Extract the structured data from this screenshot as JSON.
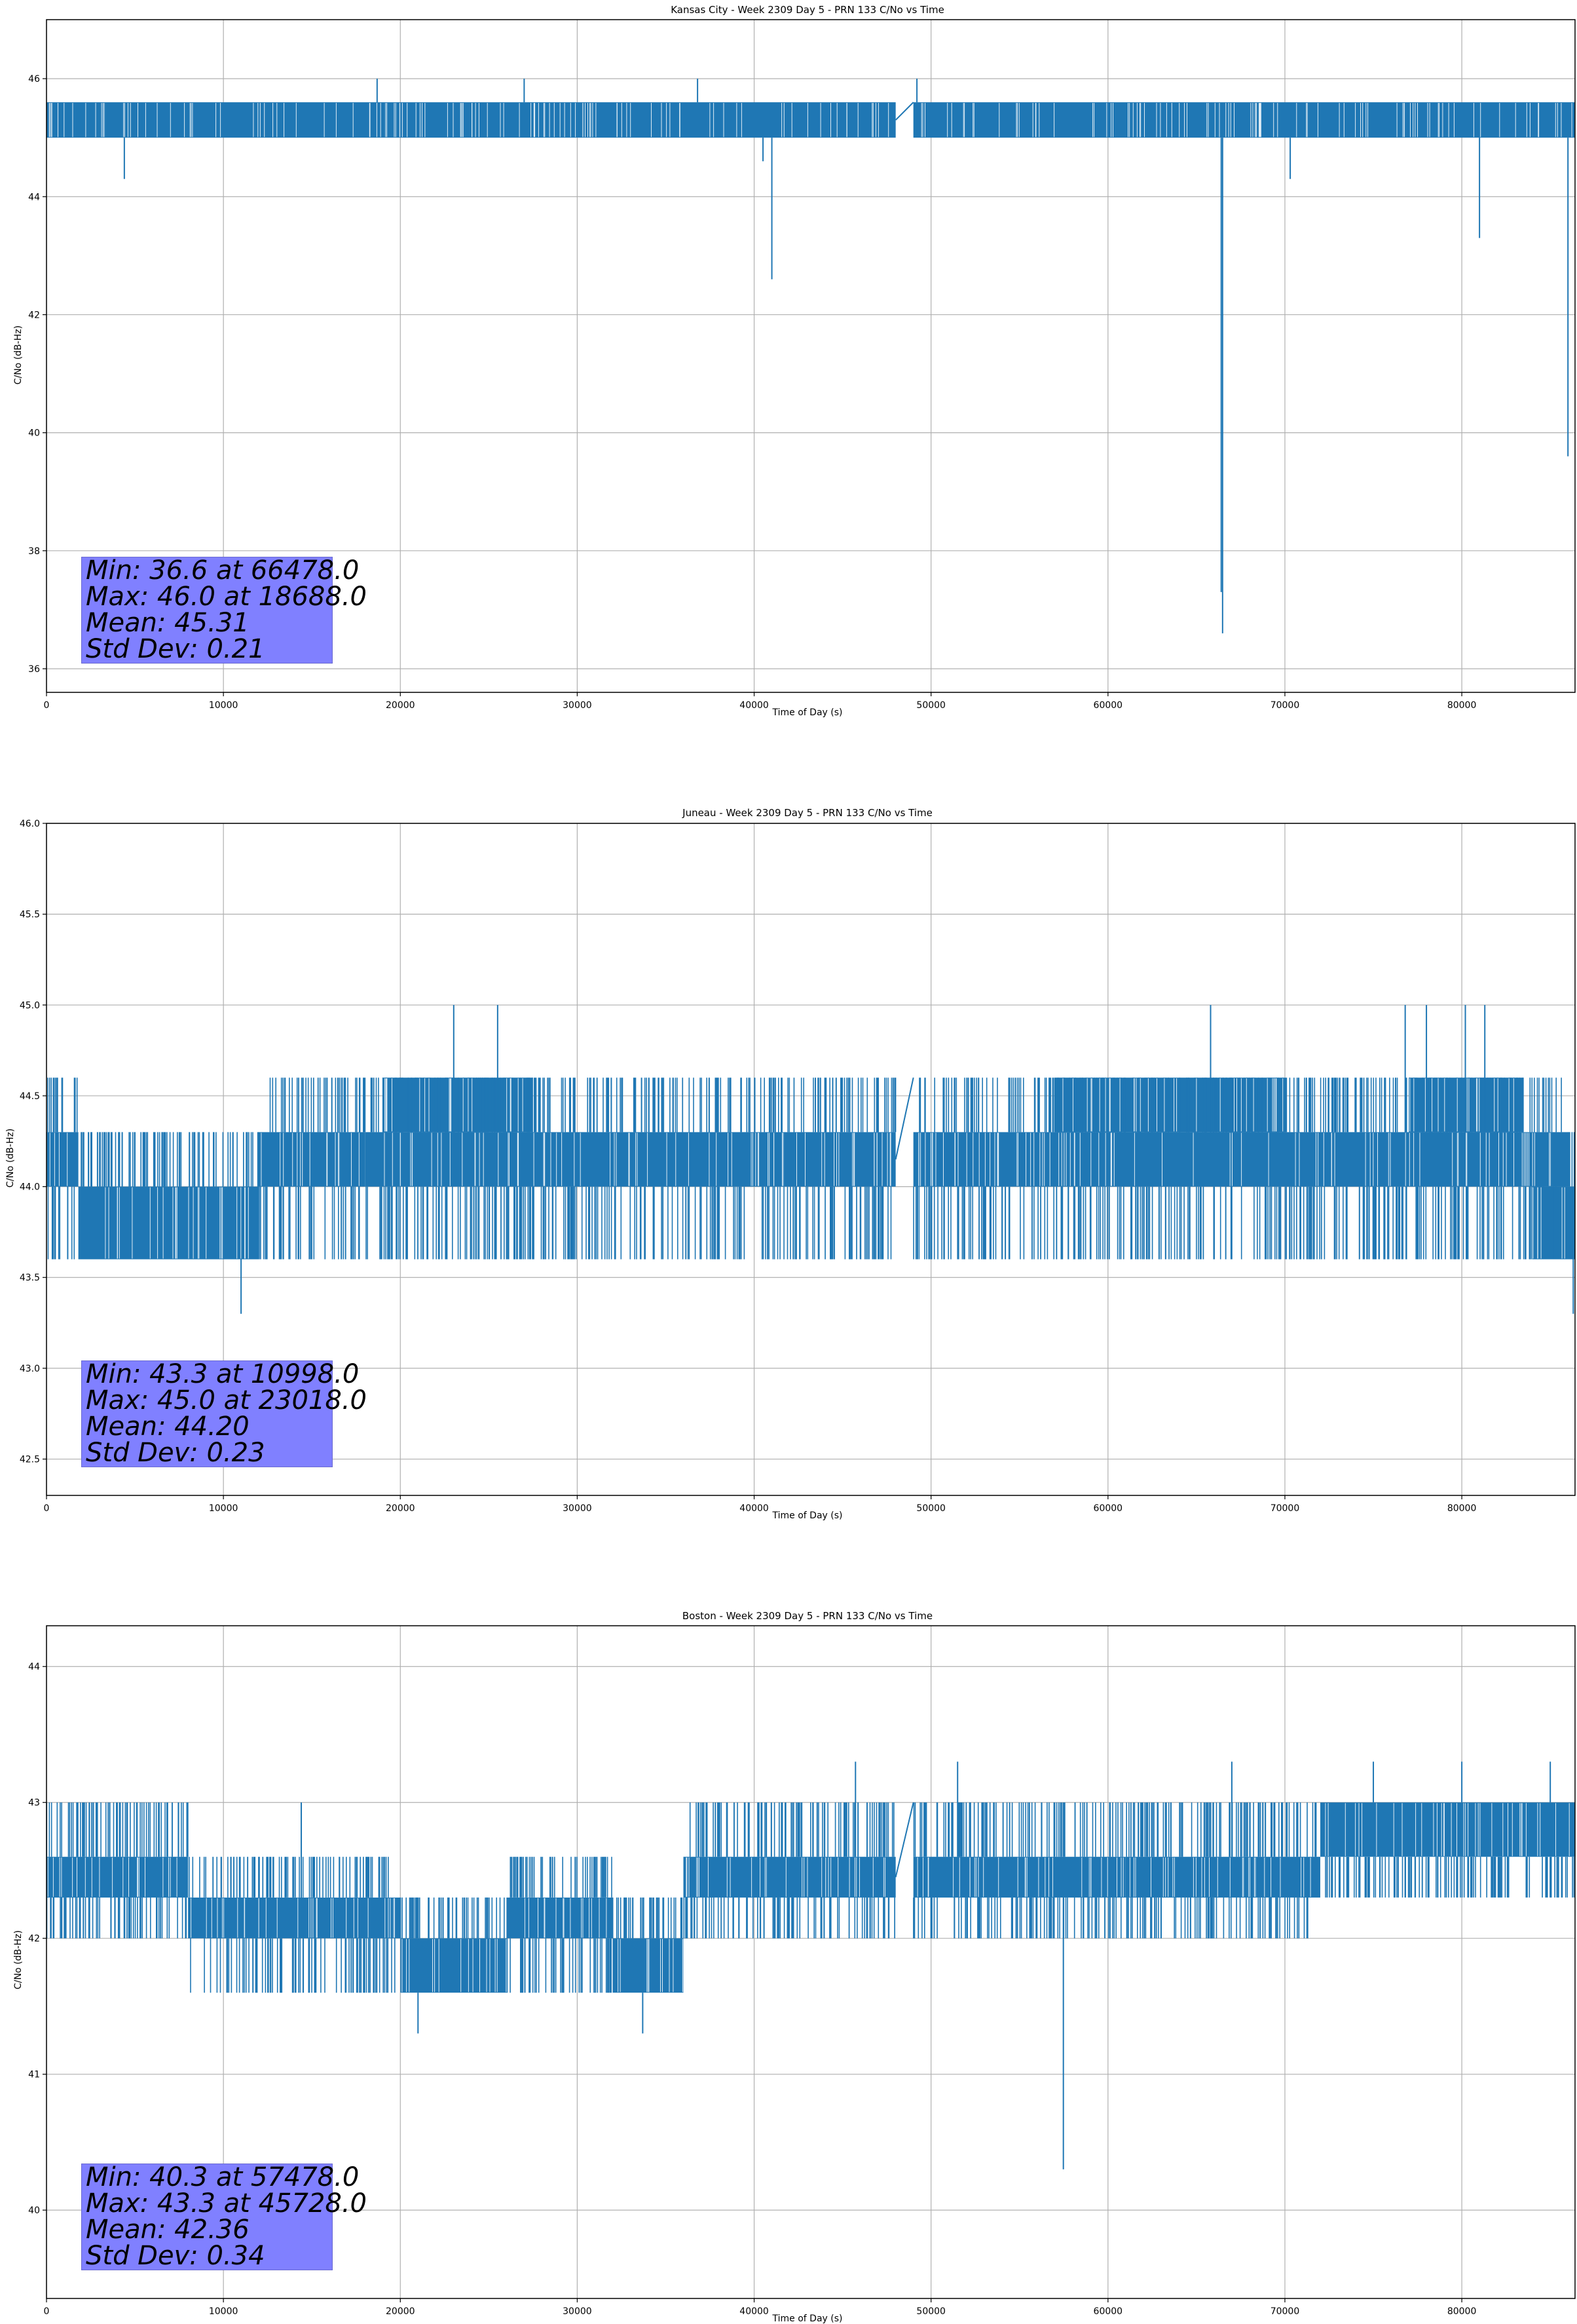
{
  "figure": {
    "background": "#ffffff",
    "line_color": "#1f77b4",
    "grid_color": "#b0b0b0",
    "stats_box_color": "#8080ff"
  },
  "chart_data": [
    {
      "type": "line",
      "title": "Kansas City - Week 2309 Day 5 - PRN 133 C/No vs Time",
      "xlabel": "Time of Day (s)",
      "ylabel": "C/No (dB-Hz)",
      "xlim": [
        0,
        86400
      ],
      "ylim": [
        35.6,
        47.0
      ],
      "xticks": [
        0,
        10000,
        20000,
        30000,
        40000,
        50000,
        60000,
        70000,
        80000
      ],
      "yticks": [
        36,
        38,
        40,
        42,
        44,
        46
      ],
      "grid": true,
      "series": [
        {
          "band_segments": [
            {
              "x0": 0,
              "x1": 48000,
              "lo": 45.0,
              "hi": 45.6
            },
            {
              "x0": 49000,
              "x1": 86400,
              "lo": 45.0,
              "hi": 45.6
            }
          ],
          "levels": [
            45.0,
            45.3,
            45.6
          ],
          "spikes": [
            {
              "x": 4400,
              "y": 44.3
            },
            {
              "x": 18688,
              "y": 46.0
            },
            {
              "x": 27000,
              "y": 46.0
            },
            {
              "x": 36800,
              "y": 46.0
            },
            {
              "x": 40500,
              "y": 44.6
            },
            {
              "x": 41000,
              "y": 42.6
            },
            {
              "x": 49200,
              "y": 46.0
            },
            {
              "x": 66400,
              "y": 37.3
            },
            {
              "x": 66478,
              "y": 36.6
            },
            {
              "x": 70300,
              "y": 44.3
            },
            {
              "x": 81000,
              "y": 43.3
            },
            {
              "x": 86000,
              "y": 39.6
            }
          ]
        }
      ],
      "stats": {
        "min_label": "Min: 36.6 at 66478.0",
        "max_label": "Max: 46.0 at 18688.0",
        "mean_label": "Mean: 45.31",
        "std_label": "Std Dev: 0.21"
      }
    },
    {
      "type": "line",
      "title": "Juneau - Week 2309 Day 5 - PRN 133 C/No vs Time",
      "xlabel": "Time of Day (s)",
      "ylabel": "C/No (dB-Hz)",
      "xlim": [
        0,
        86400
      ],
      "ylim": [
        42.3,
        46.0
      ],
      "xticks": [
        0,
        10000,
        20000,
        30000,
        40000,
        50000,
        60000,
        70000,
        80000
      ],
      "yticks": [
        42.5,
        43.0,
        43.5,
        44.0,
        44.5,
        45.0,
        45.5,
        46.0
      ],
      "grid": true,
      "series": [
        {
          "band_segments": [
            {
              "x0": 0,
              "x1": 1800,
              "lo": 44.0,
              "hi": 44.3
            },
            {
              "x0": 1800,
              "x1": 12000,
              "lo": 43.6,
              "hi": 44.0
            },
            {
              "x0": 12000,
              "x1": 18000,
              "lo": 44.0,
              "hi": 44.3
            },
            {
              "x0": 18000,
              "x1": 48000,
              "lo": 44.0,
              "hi": 44.3
            },
            {
              "x0": 19000,
              "x1": 27500,
              "lo": 44.3,
              "hi": 44.6
            },
            {
              "x0": 49000,
              "x1": 86000,
              "lo": 44.0,
              "hi": 44.3
            },
            {
              "x0": 57000,
              "x1": 70000,
              "lo": 44.3,
              "hi": 44.6
            },
            {
              "x0": 77000,
              "x1": 83500,
              "lo": 44.3,
              "hi": 44.6
            },
            {
              "x0": 84000,
              "x1": 86400,
              "lo": 43.6,
              "hi": 44.0
            }
          ],
          "levels": [
            43.6,
            44.0,
            44.3,
            44.6
          ],
          "spikes": [
            {
              "x": 10998,
              "y": 43.3
            },
            {
              "x": 23018,
              "y": 45.0
            },
            {
              "x": 25500,
              "y": 45.0
            },
            {
              "x": 65800,
              "y": 45.0
            },
            {
              "x": 76800,
              "y": 45.0
            },
            {
              "x": 78000,
              "y": 45.0
            },
            {
              "x": 80200,
              "y": 45.0
            },
            {
              "x": 81300,
              "y": 45.0
            },
            {
              "x": 86300,
              "y": 43.3
            }
          ]
        }
      ],
      "stats": {
        "min_label": "Min: 43.3 at 10998.0",
        "max_label": "Max: 45.0 at 23018.0",
        "mean_label": "Mean: 44.20",
        "std_label": "Std Dev: 0.23"
      }
    },
    {
      "type": "line",
      "title": "Boston - Week 2309 Day 5 - PRN 133 C/No vs Time",
      "xlabel": "Time of Day (s)",
      "ylabel": "C/No (dB-Hz)",
      "xlim": [
        0,
        86400
      ],
      "ylim": [
        39.35,
        44.3
      ],
      "xticks": [
        0,
        10000,
        20000,
        30000,
        40000,
        50000,
        60000,
        70000,
        80000
      ],
      "yticks": [
        40,
        41,
        42,
        43,
        44
      ],
      "grid": true,
      "series": [
        {
          "band_segments": [
            {
              "x0": 0,
              "x1": 4500,
              "lo": 42.3,
              "hi": 42.6
            },
            {
              "x0": 4500,
              "x1": 8000,
              "lo": 42.3,
              "hi": 42.6
            },
            {
              "x0": 8000,
              "x1": 20000,
              "lo": 42.0,
              "hi": 42.3
            },
            {
              "x0": 20000,
              "x1": 26000,
              "lo": 41.6,
              "hi": 42.0
            },
            {
              "x0": 26000,
              "x1": 32000,
              "lo": 42.0,
              "hi": 42.3
            },
            {
              "x0": 32000,
              "x1": 36000,
              "lo": 41.6,
              "hi": 42.0
            },
            {
              "x0": 36000,
              "x1": 48000,
              "lo": 42.3,
              "hi": 42.6
            },
            {
              "x0": 49000,
              "x1": 61000,
              "lo": 42.3,
              "hi": 42.6
            },
            {
              "x0": 61000,
              "x1": 72000,
              "lo": 42.3,
              "hi": 42.6
            },
            {
              "x0": 72000,
              "x1": 86400,
              "lo": 42.6,
              "hi": 43.0
            }
          ],
          "levels": [
            41.6,
            42.0,
            42.3,
            42.6,
            43.0
          ],
          "spikes": [
            {
              "x": 14400,
              "y": 43.0
            },
            {
              "x": 21000,
              "y": 41.3
            },
            {
              "x": 33700,
              "y": 41.3
            },
            {
              "x": 45728,
              "y": 43.3
            },
            {
              "x": 51500,
              "y": 43.3
            },
            {
              "x": 57478,
              "y": 40.3
            },
            {
              "x": 67000,
              "y": 43.3
            },
            {
              "x": 75000,
              "y": 43.3
            },
            {
              "x": 80000,
              "y": 43.3
            },
            {
              "x": 85000,
              "y": 43.3
            }
          ]
        }
      ],
      "stats": {
        "min_label": "Min: 40.3 at 57478.0",
        "max_label": "Max: 43.3 at 45728.0",
        "mean_label": "Mean: 42.36",
        "std_label": "Std Dev: 0.34"
      }
    }
  ]
}
